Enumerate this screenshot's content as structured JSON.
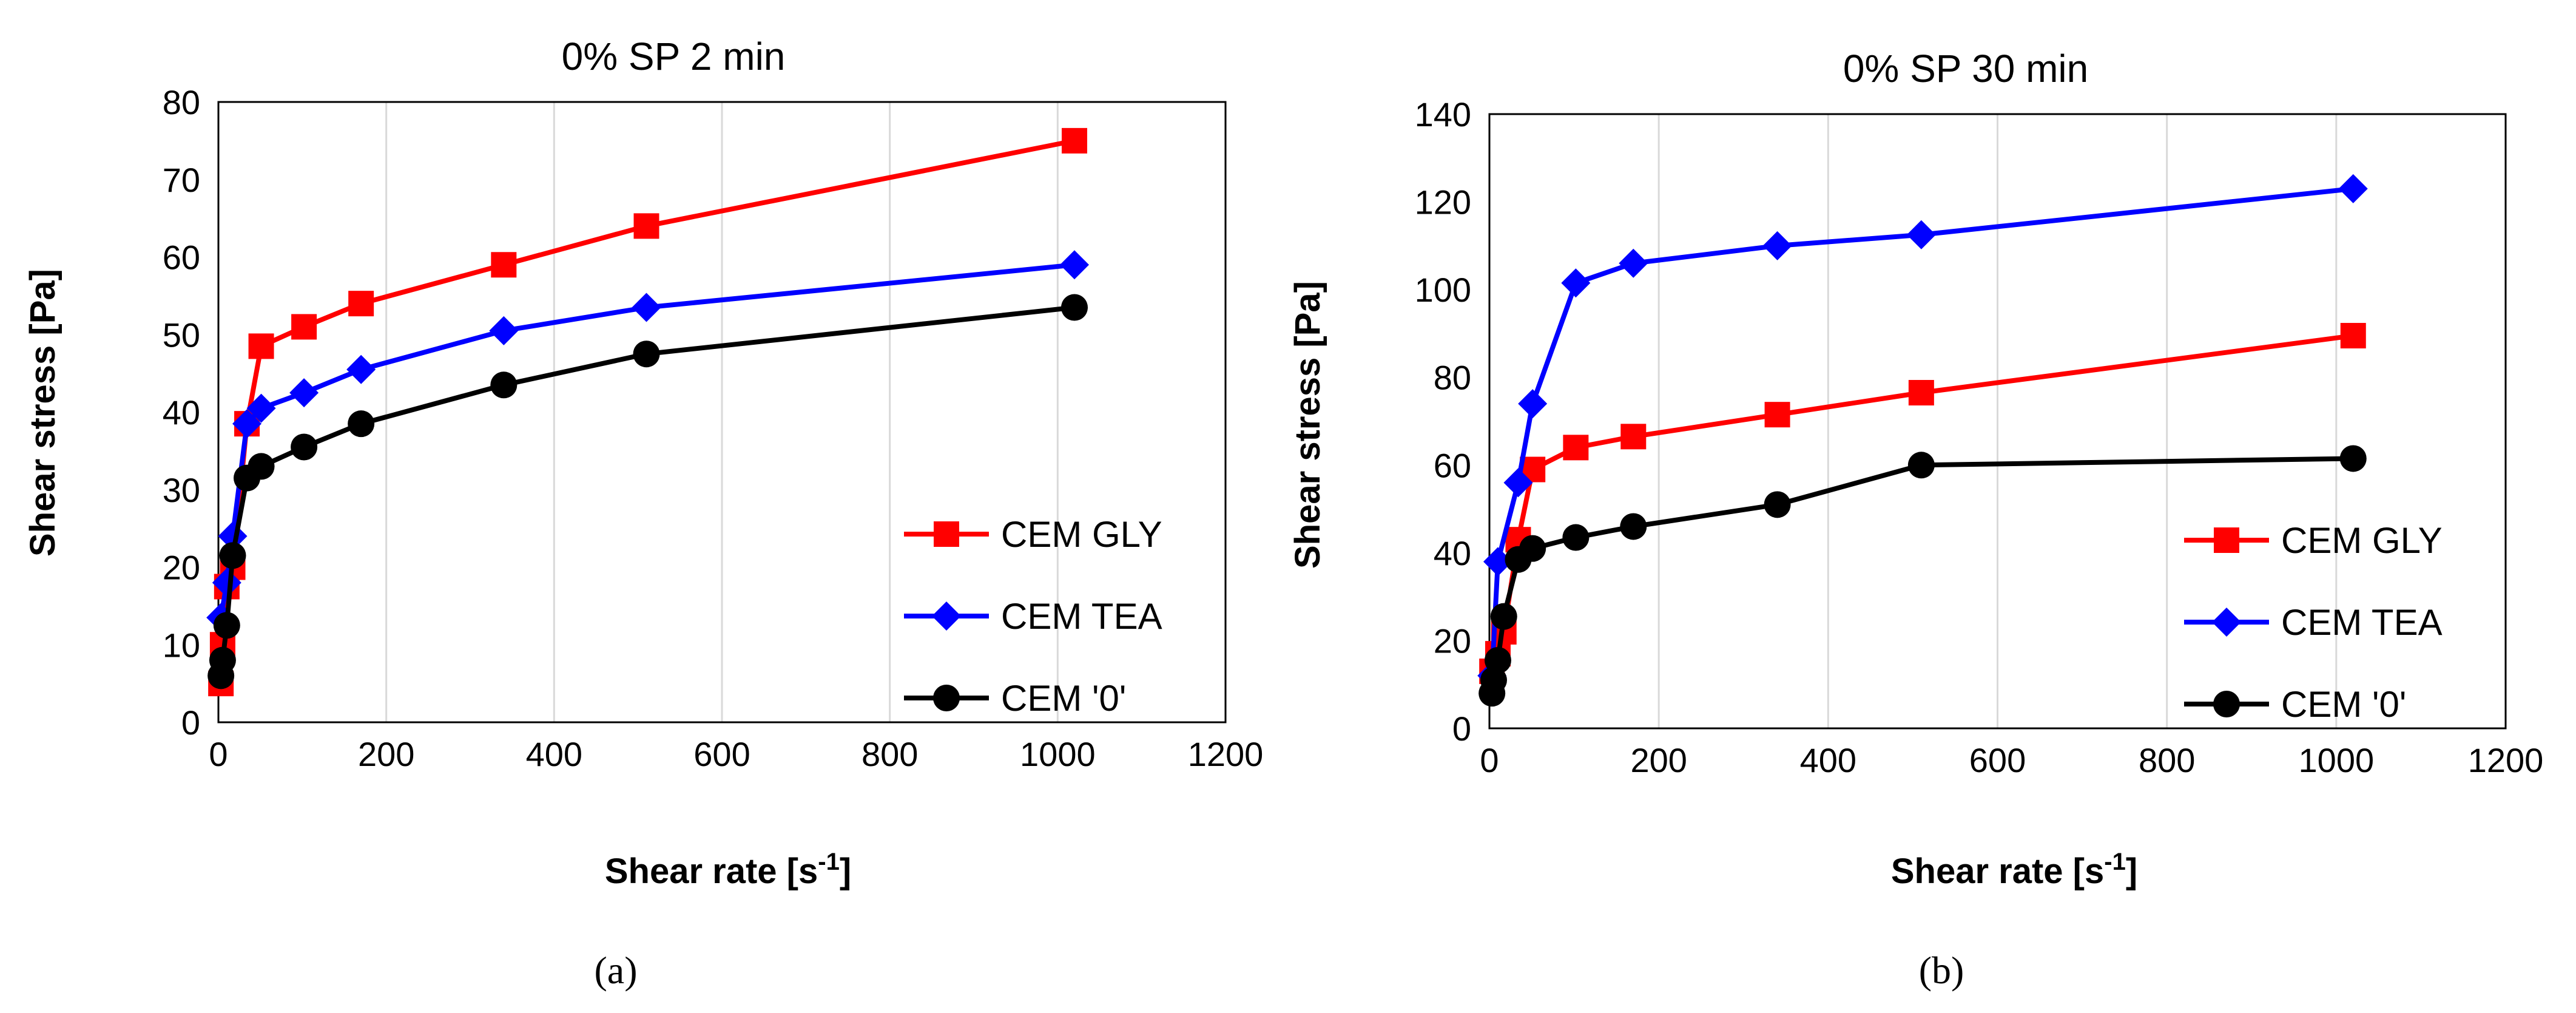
{
  "figure": {
    "captions": [
      "(a)",
      "(b)"
    ]
  },
  "chart_data": [
    {
      "type": "line",
      "title": "0% SP 2 min",
      "xlabel": "Shear rate [s",
      "xlabel_sup": "-1",
      "xlabel_suffix": "]",
      "ylabel": "Shear stress [Pa]",
      "xlim": [
        0,
        1200
      ],
      "ylim": [
        0,
        80
      ],
      "xticks": [
        0,
        200,
        400,
        600,
        800,
        1000,
        1200
      ],
      "yticks": [
        0,
        10,
        20,
        30,
        40,
        50,
        60,
        70,
        80
      ],
      "grid": "vertical",
      "legend_position": "bottom-right",
      "series": [
        {
          "name": "CEM GLY",
          "color": "#ff0000",
          "marker": "square",
          "x": [
            3,
            5,
            10,
            17,
            34,
            51,
            102,
            170,
            340,
            510,
            1020
          ],
          "y": [
            5,
            10,
            17.5,
            20,
            38.5,
            48.5,
            51,
            54,
            59,
            64,
            75
          ]
        },
        {
          "name": "CEM TEA",
          "color": "#0000ff",
          "marker": "diamond",
          "x": [
            3,
            10,
            17,
            34,
            51,
            102,
            170,
            340,
            510,
            1020
          ],
          "y": [
            13.5,
            18,
            24,
            38.5,
            40.5,
            42.5,
            45.5,
            50.5,
            53.5,
            59
          ]
        },
        {
          "name": "CEM '0'",
          "color": "#000000",
          "marker": "circle",
          "x": [
            3,
            5,
            10,
            17,
            34,
            51,
            102,
            170,
            340,
            510,
            1020
          ],
          "y": [
            6,
            8,
            12.5,
            21.5,
            31.5,
            33,
            35.5,
            38.5,
            43.5,
            47.5,
            53.5
          ]
        }
      ]
    },
    {
      "type": "line",
      "title": "0% SP 30 min",
      "xlabel": "Shear rate [s",
      "xlabel_sup": "-1",
      "xlabel_suffix": "]",
      "ylabel": "Shear stress [Pa]",
      "xlim": [
        0,
        1200
      ],
      "ylim": [
        0,
        140
      ],
      "xticks": [
        0,
        200,
        400,
        600,
        800,
        1000,
        1200
      ],
      "yticks": [
        0,
        20,
        40,
        60,
        80,
        100,
        120,
        140
      ],
      "grid": "vertical",
      "legend_position": "bottom-right",
      "series": [
        {
          "name": "CEM GLY",
          "color": "#ff0000",
          "marker": "square",
          "x": [
            3,
            10,
            17,
            34,
            51,
            102,
            170,
            340,
            510,
            1020
          ],
          "y": [
            13,
            17,
            22,
            43,
            59,
            64,
            66.5,
            71.5,
            76.5,
            89.5
          ]
        },
        {
          "name": "CEM TEA",
          "color": "#0000ff",
          "marker": "diamond",
          "x": [
            3,
            10,
            34,
            51,
            102,
            170,
            340,
            510,
            1020
          ],
          "y": [
            12,
            38,
            56,
            74,
            101.5,
            106,
            110,
            112.5,
            123
          ]
        },
        {
          "name": "CEM '0'",
          "color": "#000000",
          "marker": "circle",
          "x": [
            3,
            5,
            10,
            17,
            34,
            51,
            102,
            170,
            340,
            510,
            1020
          ],
          "y": [
            8,
            11,
            15.5,
            25.5,
            38.5,
            41,
            43.5,
            46,
            51,
            60,
            61.5
          ]
        }
      ]
    }
  ]
}
